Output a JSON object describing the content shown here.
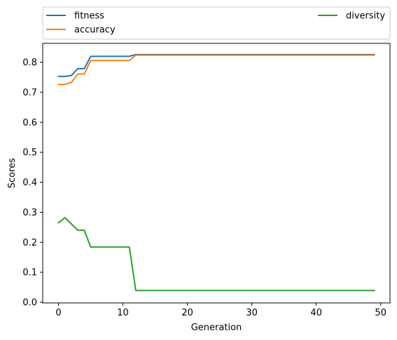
{
  "chart_data": {
    "type": "line",
    "title": "",
    "xlabel": "Generation",
    "ylabel": "Scores",
    "xlim": [
      -2.45,
      51.45
    ],
    "ylim": [
      -0.0023,
      0.8632
    ],
    "xticks": [
      0,
      10,
      20,
      30,
      40,
      50
    ],
    "yticks": [
      0.0,
      0.1,
      0.2,
      0.3,
      0.4,
      0.5,
      0.6,
      0.7,
      0.8
    ],
    "xtick_labels": [
      "0",
      "10",
      "20",
      "30",
      "40",
      "50"
    ],
    "ytick_labels": [
      "0.0",
      "0.1",
      "0.2",
      "0.3",
      "0.4",
      "0.5",
      "0.6",
      "0.7",
      "0.8"
    ],
    "grid": false,
    "legend": "above-plot",
    "x": [
      0,
      1,
      2,
      3,
      4,
      5,
      6,
      7,
      8,
      9,
      10,
      11,
      12,
      13,
      14,
      15,
      16,
      17,
      18,
      19,
      20,
      21,
      22,
      23,
      24,
      25,
      26,
      27,
      28,
      29,
      30,
      31,
      32,
      33,
      34,
      35,
      36,
      37,
      38,
      39,
      40,
      41,
      42,
      43,
      44,
      45,
      46,
      47,
      48,
      49
    ],
    "series": [
      {
        "name": "fitness",
        "color": "#1f77b4",
        "values": [
          0.753,
          0.753,
          0.756,
          0.779,
          0.779,
          0.82,
          0.82,
          0.82,
          0.82,
          0.82,
          0.82,
          0.82,
          0.826,
          0.826,
          0.826,
          0.826,
          0.826,
          0.826,
          0.826,
          0.826,
          0.826,
          0.826,
          0.826,
          0.826,
          0.826,
          0.826,
          0.826,
          0.826,
          0.826,
          0.826,
          0.826,
          0.826,
          0.826,
          0.826,
          0.826,
          0.826,
          0.826,
          0.826,
          0.826,
          0.826,
          0.826,
          0.826,
          0.826,
          0.826,
          0.826,
          0.826,
          0.826,
          0.826,
          0.826,
          0.826
        ]
      },
      {
        "name": "accuracy",
        "color": "#ff7f0e",
        "values": [
          0.726,
          0.726,
          0.733,
          0.761,
          0.761,
          0.806,
          0.806,
          0.806,
          0.806,
          0.806,
          0.806,
          0.806,
          0.824,
          0.824,
          0.824,
          0.824,
          0.824,
          0.824,
          0.824,
          0.824,
          0.824,
          0.824,
          0.824,
          0.824,
          0.824,
          0.824,
          0.824,
          0.824,
          0.824,
          0.824,
          0.824,
          0.824,
          0.824,
          0.824,
          0.824,
          0.824,
          0.824,
          0.824,
          0.824,
          0.824,
          0.824,
          0.824,
          0.824,
          0.824,
          0.824,
          0.824,
          0.824,
          0.824,
          0.824,
          0.824
        ]
      },
      {
        "name": "diversity",
        "color": "#2ca02c",
        "values": [
          0.265,
          0.282,
          0.261,
          0.24,
          0.24,
          0.184,
          0.184,
          0.184,
          0.184,
          0.184,
          0.184,
          0.184,
          0.039,
          0.039,
          0.039,
          0.039,
          0.039,
          0.039,
          0.039,
          0.039,
          0.039,
          0.039,
          0.039,
          0.039,
          0.039,
          0.039,
          0.039,
          0.039,
          0.039,
          0.039,
          0.039,
          0.039,
          0.039,
          0.039,
          0.039,
          0.039,
          0.039,
          0.039,
          0.039,
          0.039,
          0.039,
          0.039,
          0.039,
          0.039,
          0.039,
          0.039,
          0.039,
          0.039,
          0.039,
          0.039
        ]
      }
    ]
  }
}
